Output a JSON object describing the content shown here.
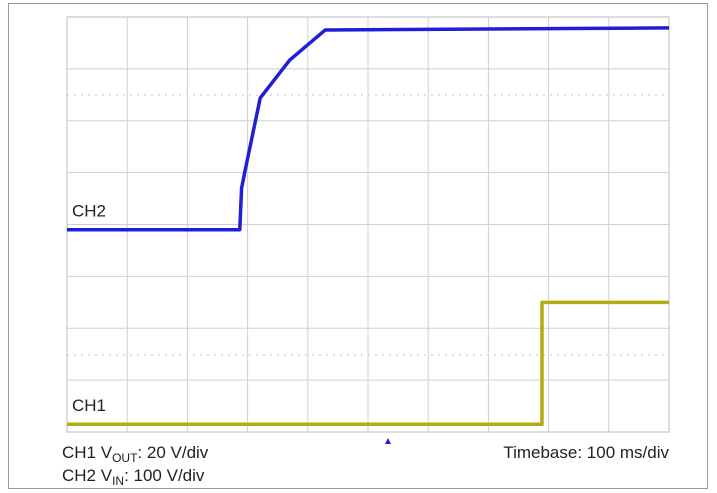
{
  "chart_data": {
    "type": "line",
    "xlim": [
      0,
      1000
    ],
    "ylim": [
      0,
      8
    ],
    "series": [
      {
        "name": "CH2",
        "color": "#1f1fd6",
        "x": [
          0,
          287,
          290,
          296,
          321,
          370,
          429,
          1000
        ],
        "values": [
          3.9,
          3.9,
          4.7,
          5.05,
          6.44,
          7.17,
          7.75,
          7.79
        ]
      },
      {
        "name": "CH1",
        "color": "#b5ac12",
        "x": [
          0,
          789,
          789,
          1000
        ],
        "values": [
          0.15,
          0.15,
          2.5,
          2.5
        ]
      }
    ],
    "annotations": [
      {
        "parts": [
          "CH1 V",
          "OUT",
          ": 20 V/div"
        ]
      },
      {
        "parts": [
          "CH2 V",
          "IN",
          ": 100 V/div"
        ]
      },
      {
        "parts": [
          "Timebase: 100 ms/div"
        ]
      }
    ]
  }
}
